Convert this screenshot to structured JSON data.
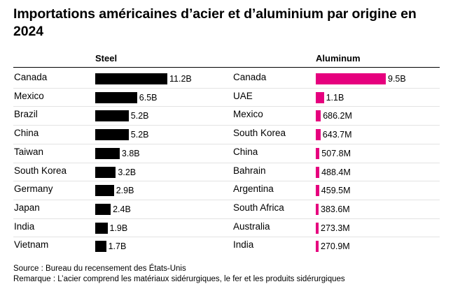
{
  "title": "Importations américaines d’acier et d’aluminium par origine en 2024",
  "footer": {
    "source": "Source : Bureau du recensement des États-Unis",
    "note": "Remarque : L’acier comprend les matériaux sidérurgiques, le fer et les produits sidérurgiques"
  },
  "colors": {
    "steel": "#000000",
    "aluminum": "#e6007e"
  },
  "chart_data": [
    {
      "type": "bar",
      "orientation": "horizontal",
      "title": "Steel",
      "unit": "B USD",
      "categories": [
        "Canada",
        "Mexico",
        "Brazil",
        "China",
        "Taiwan",
        "South Korea",
        "Germany",
        "Japan",
        "India",
        "Vietnam"
      ],
      "values": [
        11.2,
        6.5,
        5.2,
        5.2,
        3.8,
        3.2,
        2.9,
        2.4,
        1.9,
        1.7
      ],
      "labels": [
        "11.2B",
        "6.5B",
        "5.2B",
        "5.2B",
        "3.8B",
        "3.2B",
        "2.9B",
        "2.4B",
        "1.9B",
        "1.7B"
      ],
      "xlim": [
        0,
        11.2
      ]
    },
    {
      "type": "bar",
      "orientation": "horizontal",
      "title": "Aluminum",
      "unit": "B USD",
      "categories": [
        "Canada",
        "UAE",
        "Mexico",
        "South Korea",
        "China",
        "Bahrain",
        "Argentina",
        "South Africa",
        "Australia",
        "India"
      ],
      "values": [
        9.5,
        1.1,
        0.6862,
        0.6437,
        0.5078,
        0.4884,
        0.4595,
        0.3836,
        0.2733,
        0.2709
      ],
      "labels": [
        "9.5B",
        "1.1B",
        "686.2M",
        "643.7M",
        "507.8M",
        "488.4M",
        "459.5M",
        "383.6M",
        "273.3M",
        "270.9M"
      ],
      "xlim": [
        0,
        9.5
      ]
    }
  ]
}
